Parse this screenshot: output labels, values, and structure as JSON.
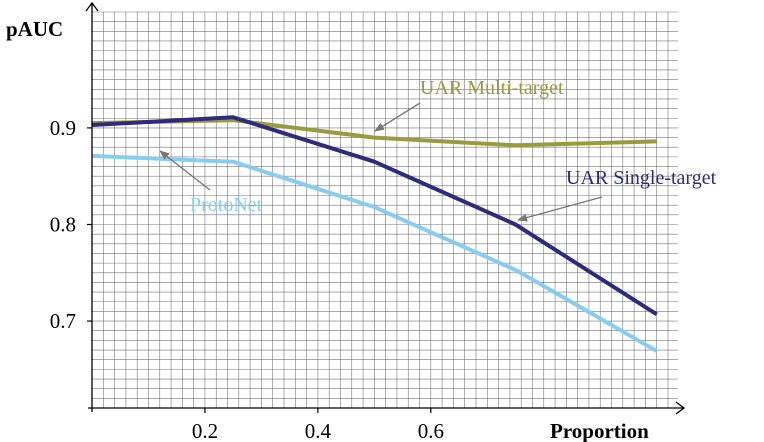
{
  "chart_data": {
    "type": "line",
    "xlabel": "Proportion",
    "ylabel": "pAUC",
    "xlim": [
      0.0,
      1.02
    ],
    "ylim": [
      0.61,
      1.02
    ],
    "x_ticks": [
      0.2,
      0.4,
      0.6
    ],
    "x_tick_labels": [
      "0.2",
      "0.4",
      "0.6"
    ],
    "y_ticks": [
      0.7,
      0.8,
      0.9
    ],
    "y_tick_labels": [
      "0.7",
      "0.8",
      "0.9"
    ],
    "grid": true,
    "legend": "none (series labeled inline with arrows)",
    "series": [
      {
        "name": "UAR Multi-target",
        "color": "#9b9a3e",
        "x": [
          0.0,
          0.25,
          0.5,
          0.75,
          1.0
        ],
        "y": [
          0.905,
          0.908,
          0.89,
          0.882,
          0.886
        ]
      },
      {
        "name": "UAR Single-target",
        "color": "#2e2a7e",
        "x": [
          0.0,
          0.25,
          0.5,
          0.75,
          1.0
        ],
        "y": [
          0.903,
          0.911,
          0.865,
          0.8,
          0.707
        ]
      },
      {
        "name": "ProtoNet",
        "color": "#87cdef",
        "x": [
          0.0,
          0.25,
          0.5,
          0.75,
          1.0
        ],
        "y": [
          0.871,
          0.865,
          0.818,
          0.753,
          0.669
        ]
      }
    ]
  }
}
